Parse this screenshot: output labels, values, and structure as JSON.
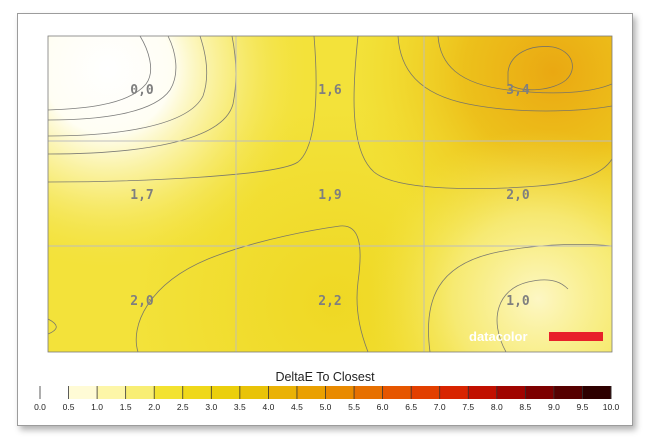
{
  "chart_data": {
    "type": "heatmap",
    "grid_labels": [
      [
        "0,0",
        "1,6",
        "3,4"
      ],
      [
        "1,7",
        "1,9",
        "2,0"
      ],
      [
        "2,0",
        "2,2",
        "1,0"
      ]
    ],
    "values": [
      [
        0.0,
        1.6,
        3.4
      ],
      [
        1.7,
        1.9,
        2.0
      ],
      [
        2.0,
        2.2,
        1.0
      ]
    ],
    "grid": true,
    "colorbar": {
      "title": "DeltaE To Closest",
      "min": 0.0,
      "max": 10.0,
      "step": 0.5,
      "tick_labels": [
        "0.0",
        "0.5",
        "1.0",
        "1.5",
        "2.0",
        "2.5",
        "3.0",
        "3.5",
        "4.0",
        "4.5",
        "5.0",
        "5.5",
        "6.0",
        "6.5",
        "7.0",
        "7.5",
        "8.0",
        "8.5",
        "9.0",
        "9.5",
        "10.0"
      ],
      "colors": [
        "#ffffff",
        "#fffbd6",
        "#fdf6a8",
        "#f8ee74",
        "#f3e230",
        "#efd81a",
        "#ebcf0c",
        "#e9c308",
        "#eab205",
        "#eaa001",
        "#e98a00",
        "#e77000",
        "#e65600",
        "#e23f00",
        "#d82400",
        "#c11000",
        "#a00400",
        "#7d0000",
        "#560000",
        "#2e0000"
      ]
    },
    "brand": {
      "text": "datacolor",
      "color": "#e8202a"
    }
  }
}
